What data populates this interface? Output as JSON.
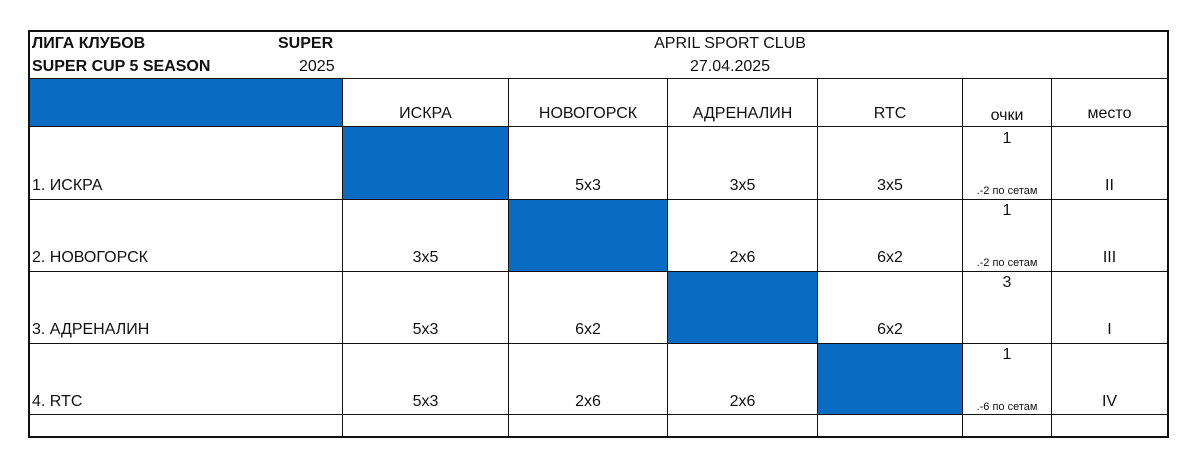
{
  "header": {
    "league_line1": "ЛИГА КЛУБОВ",
    "league_tag": "SUPER",
    "cup_line2": "SUPER CUP 5 SEASON",
    "year": "2025",
    "venue": "APRIL SPORT CLUB",
    "date": "27.04.2025"
  },
  "columns": [
    "ИСКРА",
    "НОВОГОРСК",
    "АДРЕНАЛИН",
    "RTC",
    "очки",
    "место"
  ],
  "rows": [
    {
      "team": "1. ИСКРА",
      "results": [
        "",
        "5x3",
        "3x5",
        "3x5"
      ],
      "points": "1",
      "sets_note": ".-2 по сетам",
      "place": "II"
    },
    {
      "team": "2. НОВОГОРСК",
      "results": [
        "3x5",
        "",
        "2x6",
        "6x2"
      ],
      "points": "1",
      "sets_note": ".-2 по сетам",
      "place": "III"
    },
    {
      "team": "3. АДРЕНАЛИН",
      "results": [
        "5x3",
        "6x2",
        "",
        "6x2"
      ],
      "points": "3",
      "sets_note": "",
      "place": "I"
    },
    {
      "team": "4. RTC",
      "results": [
        "5x3",
        "2x6",
        "2x6",
        ""
      ],
      "points": "1",
      "sets_note": ".-6 по сетам",
      "place": "IV"
    }
  ],
  "colors": {
    "accent_blue": "#0a6bc2",
    "grid": "#111111"
  }
}
